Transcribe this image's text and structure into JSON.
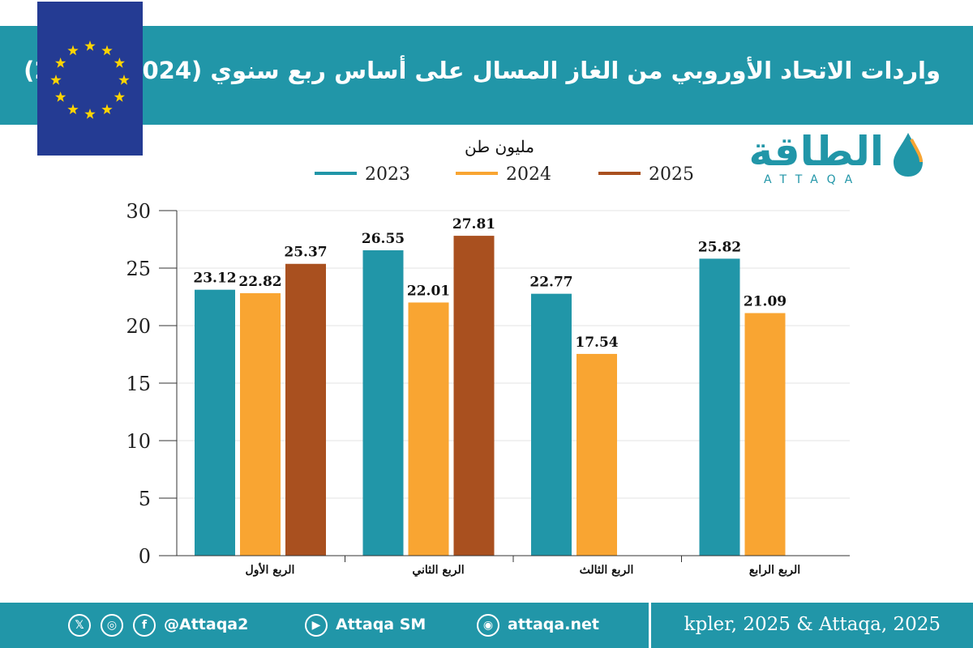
{
  "header": {
    "title": "واردات الاتحاد الأوروبي من الغاز المسال على أساس ربع سنوي (2024 - 2025)"
  },
  "logo": {
    "arabic": "الطاقة",
    "latin": "ATTAQA"
  },
  "flag": {
    "icon": "eu-flag-icon",
    "star_count": 12,
    "color": "#243b93",
    "star_color": "#ffd400"
  },
  "chart_data": {
    "type": "bar",
    "unit_label": "مليون طن",
    "categories": [
      "الربع الأول",
      "الربع الثاني",
      "الربع الثالث",
      "الربع الرابع"
    ],
    "series": [
      {
        "name": "2023",
        "color": "#2196a8",
        "values": [
          23.12,
          26.55,
          22.77,
          25.82
        ]
      },
      {
        "name": "2024",
        "color": "#f9a532",
        "values": [
          22.82,
          22.01,
          17.54,
          21.09
        ]
      },
      {
        "name": "2025",
        "color": "#a9501f",
        "values": [
          25.37,
          27.81,
          null,
          null
        ]
      }
    ],
    "yticks": [
      "0",
      "5",
      "10",
      "15",
      "20",
      "25",
      "30"
    ],
    "ylim": [
      0,
      30
    ],
    "grid": true,
    "legend_position": "top"
  },
  "footer": {
    "source": "kpler, 2025 & Attaqa, 2025",
    "website": "attaqa.net",
    "youtube": "Attaqa SM",
    "social_handle": "@Attaqa2",
    "icons": [
      "x-icon",
      "instagram-icon",
      "facebook-icon",
      "youtube-icon",
      "globe-icon"
    ],
    "brand_color": "#2196a8"
  }
}
